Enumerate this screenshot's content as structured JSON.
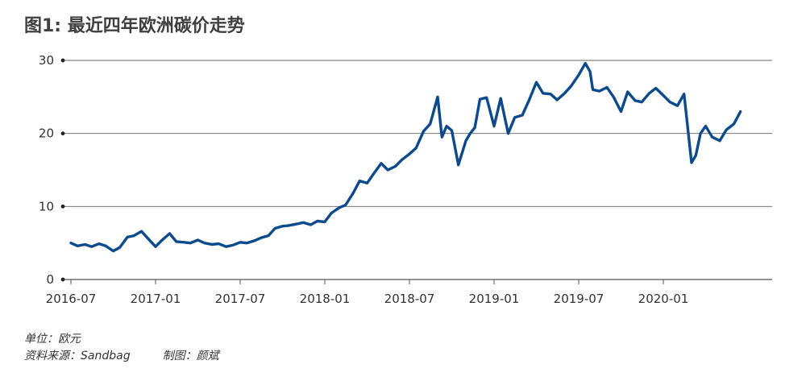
{
  "title": "图1: 最近四年欧洲碳价走势",
  "footer": {
    "unit": "单位：欧元",
    "source": "资料来源：Sandbag",
    "author": "制图：颜斌"
  },
  "chart_data": {
    "type": "line",
    "title": "图1: 最近四年欧洲碳价走势",
    "xlabel": "",
    "ylabel": "",
    "ylim": [
      0,
      30
    ],
    "yticks": [
      0,
      10,
      20,
      30
    ],
    "xticks": [
      "2016-07",
      "2017-01",
      "2017-07",
      "2018-01",
      "2018-07",
      "2019-01",
      "2019-07",
      "2020-01"
    ],
    "grid": "horizontal",
    "line_color": "#0d4a8c",
    "series": [
      {
        "x": [
          "2016-07-01",
          "2016-07-15",
          "2016-08-01",
          "2016-08-15",
          "2016-09-01",
          "2016-09-15",
          "2016-10-01",
          "2016-10-15",
          "2016-11-01",
          "2016-11-15",
          "2016-12-01",
          "2016-12-15",
          "2017-01-01",
          "2017-01-15",
          "2017-02-01",
          "2017-02-15",
          "2017-03-01",
          "2017-03-15",
          "2017-04-01",
          "2017-04-15",
          "2017-05-01",
          "2017-05-15",
          "2017-06-01",
          "2017-06-15",
          "2017-07-01",
          "2017-07-15",
          "2017-08-01",
          "2017-08-15",
          "2017-09-01",
          "2017-09-15",
          "2017-10-01",
          "2017-10-15",
          "2017-11-01",
          "2017-11-15",
          "2017-12-01",
          "2017-12-15",
          "2018-01-01",
          "2018-01-15",
          "2018-02-01",
          "2018-02-15",
          "2018-03-01",
          "2018-03-15",
          "2018-04-01",
          "2018-04-15",
          "2018-05-01",
          "2018-05-15",
          "2018-06-01",
          "2018-06-15",
          "2018-07-01",
          "2018-07-15",
          "2018-08-01",
          "2018-08-15",
          "2018-09-01",
          "2018-09-10",
          "2018-09-20",
          "2018-10-01",
          "2018-10-15",
          "2018-11-01",
          "2018-11-10",
          "2018-11-20",
          "2018-12-01",
          "2018-12-15",
          "2019-01-01",
          "2019-01-15",
          "2019-02-01",
          "2019-02-15",
          "2019-03-01",
          "2019-03-15",
          "2019-04-01",
          "2019-04-15",
          "2019-05-01",
          "2019-05-15",
          "2019-06-01",
          "2019-06-15",
          "2019-07-01",
          "2019-07-15",
          "2019-07-25",
          "2019-08-01",
          "2019-08-15",
          "2019-09-01",
          "2019-09-15",
          "2019-10-01",
          "2019-10-15",
          "2019-11-01",
          "2019-11-15",
          "2019-12-01",
          "2019-12-15",
          "2020-01-01",
          "2020-01-15",
          "2020-02-01",
          "2020-02-15",
          "2020-03-01",
          "2020-03-10",
          "2020-03-20",
          "2020-04-01",
          "2020-04-15",
          "2020-05-01",
          "2020-05-15",
          "2020-06-01",
          "2020-06-15"
        ],
        "values": [
          5.0,
          4.6,
          4.8,
          4.5,
          4.9,
          4.6,
          3.9,
          4.4,
          5.8,
          6.0,
          6.6,
          5.6,
          4.5,
          5.4,
          6.3,
          5.2,
          5.1,
          5.0,
          5.4,
          5.0,
          4.8,
          4.9,
          4.5,
          4.7,
          5.1,
          5.0,
          5.3,
          5.7,
          6.0,
          7.0,
          7.3,
          7.4,
          7.6,
          7.8,
          7.5,
          8.0,
          7.9,
          9.1,
          9.8,
          10.2,
          11.8,
          13.5,
          13.2,
          14.5,
          15.9,
          15.0,
          15.5,
          16.4,
          17.2,
          18.0,
          20.3,
          21.3,
          25.0,
          19.5,
          21.0,
          20.4,
          15.7,
          19.0,
          20.0,
          20.8,
          24.7,
          24.9,
          21.0,
          24.8,
          20.0,
          22.2,
          22.5,
          24.5,
          27.0,
          25.5,
          25.4,
          24.6,
          25.5,
          26.5,
          28.0,
          29.6,
          28.5,
          26.0,
          25.8,
          26.3,
          25.0,
          23.0,
          25.7,
          24.5,
          24.3,
          25.5,
          26.2,
          25.2,
          24.3,
          23.8,
          25.4,
          16.0,
          17.0,
          20.0,
          21.0,
          19.5,
          19.0,
          20.5,
          21.3,
          23.0
        ]
      }
    ]
  }
}
